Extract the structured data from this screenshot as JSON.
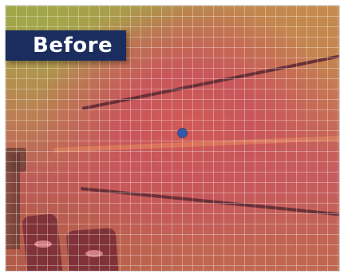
{
  "label": {
    "text": "Before"
  },
  "colors": {
    "label_background": "#1b2d5e",
    "marker": "#2e5ab0",
    "grid_line": "#ffffff"
  }
}
